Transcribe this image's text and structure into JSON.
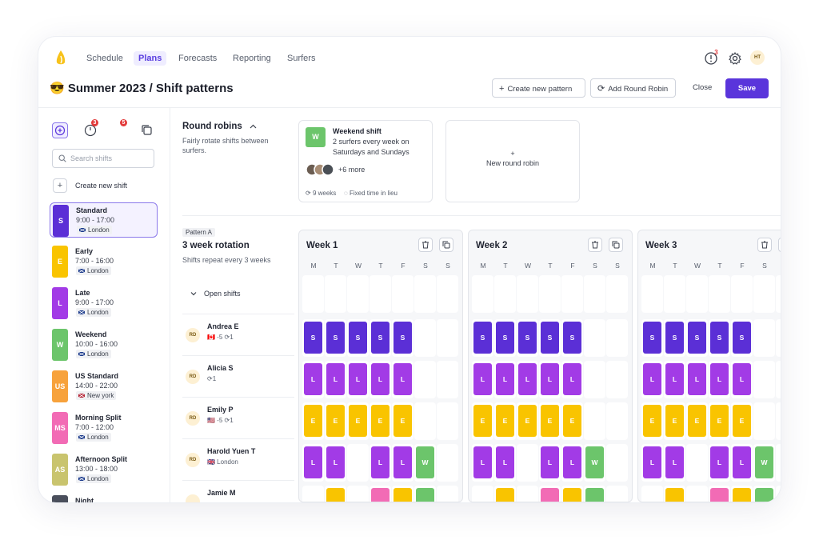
{
  "nav": {
    "items": [
      "Schedule",
      "Plans",
      "Forecasts",
      "Reporting",
      "Surfers"
    ],
    "active": "Plans",
    "alerts_badge": "3",
    "user_initials": "HT"
  },
  "header": {
    "title": "😎 Summer 2023 / Shift patterns",
    "create_pattern": "Create new pattern",
    "add_round_robin": "Add Round Robin",
    "close": "Close",
    "save": "Save"
  },
  "sidebar": {
    "tab_badges": [
      "3",
      "5"
    ],
    "search_placeholder": "Search shifts",
    "create_shift": "Create new shift",
    "shifts": [
      {
        "letter": "S",
        "name": "Standard",
        "time": "9:00 - 17:00",
        "location": "London",
        "color": "#5b2fd6",
        "selected": true
      },
      {
        "letter": "E",
        "name": "Early",
        "time": "7:00 - 16:00",
        "location": "London",
        "color": "#f9c400"
      },
      {
        "letter": "L",
        "name": "Late",
        "time": "9:00 - 17:00",
        "location": "London",
        "color": "#a23be6"
      },
      {
        "letter": "W",
        "name": "Weekend",
        "time": "10:00 - 16:00",
        "location": "London",
        "color": "#6cc56b"
      },
      {
        "letter": "US",
        "name": "US Standard",
        "time": "14:00 - 22:00",
        "location": "New york",
        "color": "#f7a23c"
      },
      {
        "letter": "MS",
        "name": "Morning Split",
        "time": "7:00 - 12:00",
        "location": "London",
        "color": "#f26bb5"
      },
      {
        "letter": "AS",
        "name": "Afternoon Split",
        "time": "13:00 - 18:00",
        "location": "London",
        "color": "#c9c46e"
      },
      {
        "letter": "",
        "name": "Night",
        "time": "",
        "location": "",
        "color": "#4a4f5c"
      }
    ]
  },
  "round_robins": {
    "title": "Round robins",
    "description": "Fairly rotate shifts between surfers.",
    "card": {
      "letter": "W",
      "name": "Weekend shift",
      "text": "2 surfers every week on Saturdays and Sundays",
      "more": "+6 more",
      "weeks": "9 weeks",
      "lieu": "Fixed time in lieu"
    },
    "new_plus": "+",
    "new_label": "New round robin"
  },
  "pattern": {
    "tag": "Pattern A",
    "title": "3 week rotation",
    "description": "Shifts repeat every 3 weeks",
    "open_shifts": "Open shifts",
    "people": [
      {
        "initials": "RD",
        "name": "Andrea E",
        "meta": "🇨🇦 -5  ⟳1"
      },
      {
        "initials": "RD",
        "name": "Alicia S",
        "meta": "⟳1"
      },
      {
        "initials": "RD",
        "name": "Emily P",
        "meta": "🇺🇸 -5  ⟳1"
      },
      {
        "initials": "RD",
        "name": "Harold Yuen T",
        "meta": "🇬🇧 London"
      },
      {
        "initials": "",
        "name": "Jamie M",
        "meta": ""
      }
    ]
  },
  "weeks": {
    "titles": [
      "Week 1",
      "Week 2",
      "Week 3"
    ],
    "days": [
      "M",
      "T",
      "W",
      "T",
      "F",
      "S",
      "S"
    ],
    "rows": [
      [
        "",
        "",
        "",
        "",
        "",
        "",
        ""
      ],
      [
        "S",
        "S",
        "S",
        "S",
        "S",
        "",
        ""
      ],
      [
        "L",
        "L",
        "L",
        "L",
        "L",
        "",
        ""
      ],
      [
        "E",
        "E",
        "E",
        "E",
        "E",
        "",
        ""
      ],
      [
        "L",
        "L",
        "",
        "L",
        "L",
        "W",
        ""
      ],
      [
        "",
        "E",
        "",
        "MS",
        "E",
        "W",
        ""
      ]
    ]
  },
  "colors": {
    "S": "#5b2fd6",
    "L": "#a23be6",
    "E": "#f9c400",
    "W": "#6cc56b",
    "MS": "#f26bb5",
    "accent": "#5a35db"
  }
}
